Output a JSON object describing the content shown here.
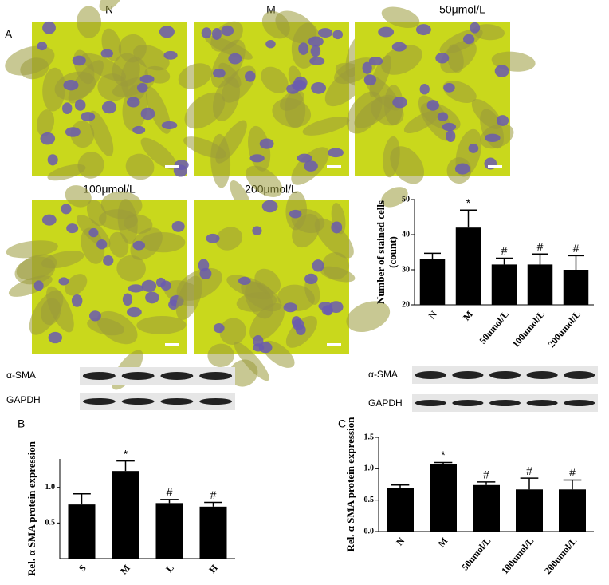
{
  "panel_labels": [
    "A",
    "B",
    "C"
  ],
  "micrographs": [
    {
      "label": "N"
    },
    {
      "label": "M"
    },
    {
      "label": "50μmol/L"
    },
    {
      "label": "100μmol/L"
    },
    {
      "label": "200μmol/L"
    }
  ],
  "blots": [
    {
      "rows": [
        "α-SMA",
        "GAPDH"
      ]
    },
    {
      "rows": [
        "α-SMA",
        "GAPDH"
      ]
    }
  ],
  "chart_data": [
    {
      "type": "bar",
      "ylabel": [
        "Number of stained cells",
        "(count)"
      ],
      "categories": [
        "N",
        "M",
        "50umol/L",
        "100umol/L",
        "200umol/L"
      ],
      "values": [
        33,
        42,
        31.5,
        31.5,
        30
      ],
      "errors": [
        1.7,
        5,
        1.8,
        3,
        4
      ],
      "annotations": [
        null,
        "*",
        "#",
        "#",
        "#"
      ],
      "color": "#000000",
      "ylim": [
        20,
        50
      ],
      "yticks": [
        20,
        30,
        40,
        50
      ]
    },
    {
      "type": "bar",
      "ylabel": [
        "Rel. α SMA protein expression"
      ],
      "categories": [
        "S",
        "M",
        "L",
        "H"
      ],
      "values": [
        0.76,
        1.23,
        0.78,
        0.73
      ],
      "errors": [
        0.15,
        0.14,
        0.05,
        0.06
      ],
      "annotations": [
        null,
        "*",
        "#",
        "#"
      ],
      "color": "#000000",
      "ylim": [
        0,
        1.4
      ],
      "yticks": [
        0.5,
        {
          "value": 1,
          "label": "1.0"
        }
      ]
    },
    {
      "type": "bar",
      "ylabel": [
        "Rel. α SMA protein expression"
      ],
      "categories": [
        "N",
        "M",
        "50umol/L",
        "100umol/L",
        "200umol/L"
      ],
      "values": [
        0.69,
        1.07,
        0.74,
        0.67,
        0.67
      ],
      "errors": [
        0.05,
        0.03,
        0.05,
        0.18,
        0.15
      ],
      "annotations": [
        null,
        "*",
        "#",
        "#",
        "#"
      ],
      "color": "#000000",
      "ylim": [
        0,
        1.5
      ],
      "yticks": [
        {
          "value": 0,
          "label": "0.0"
        },
        0.5,
        {
          "value": 1,
          "label": "1.0"
        },
        1.5
      ]
    }
  ]
}
